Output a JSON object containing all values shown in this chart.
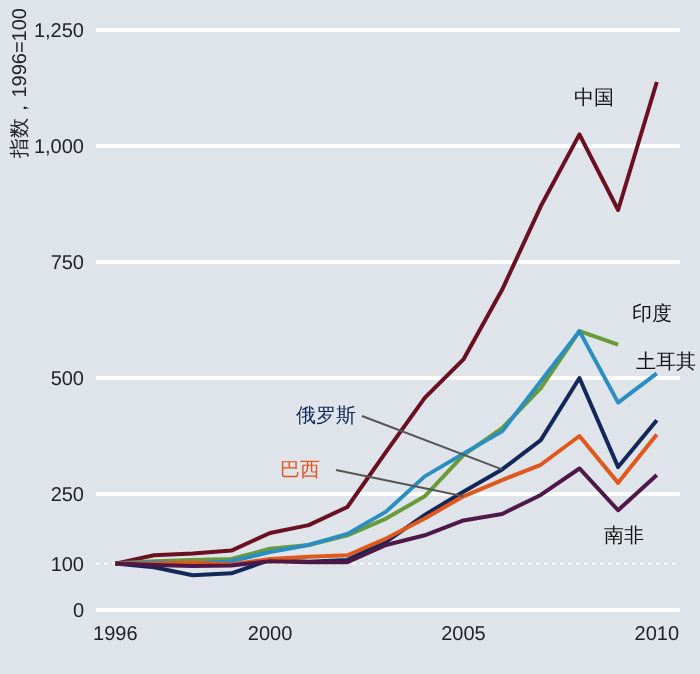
{
  "chart_data": {
    "type": "line",
    "ylabel": "指数，1996=100",
    "x": [
      1996,
      1997,
      1998,
      1999,
      2000,
      2001,
      2002,
      2003,
      2004,
      2005,
      2006,
      2007,
      2008,
      2009,
      2010
    ],
    "xlim": [
      1995.5,
      2010.6
    ],
    "xticks": [
      1996,
      2000,
      2005,
      2010
    ],
    "ylim": [
      0,
      1250
    ],
    "yticks": [
      0,
      100,
      250,
      500,
      750,
      {
        "value": 1000,
        "label": "1,000"
      },
      {
        "value": 1250,
        "label": "1,250"
      }
    ],
    "grid": "y",
    "ref_lines": [
      {
        "axis": "y",
        "value": 100,
        "color": "#ffffff",
        "line_style": "dotted"
      }
    ],
    "legend": false,
    "marker": "none",
    "line_style": "solid",
    "series": [
      {
        "name": "中国",
        "color": "#6b1020",
        "values": [
          100,
          118,
          122,
          128,
          166,
          183,
          222,
          341,
          457,
          540,
          690,
          870,
          1025,
          862,
          1138
        ]
      },
      {
        "name": "印度",
        "color": "#6a9a3a",
        "values": [
          100,
          105,
          108,
          110,
          132,
          140,
          161,
          197,
          245,
          334,
          392,
          478,
          601,
          572,
          null
        ]
      },
      {
        "name": "土耳其",
        "color": "#2a8fc0",
        "values": [
          100,
          103,
          100,
          105,
          125,
          140,
          164,
          212,
          288,
          337,
          385,
          493,
          601,
          447,
          510
        ]
      },
      {
        "name": "俄罗斯",
        "color": "#13285a",
        "values": [
          100,
          92,
          75,
          79,
          108,
          104,
          108,
          147,
          205,
          255,
          303,
          366,
          500,
          308,
          409
        ]
      },
      {
        "name": "巴西",
        "color": "#e0581c",
        "values": [
          100,
          100,
          102,
          98,
          110,
          115,
          118,
          154,
          197,
          245,
          280,
          313,
          375,
          274,
          378
        ]
      },
      {
        "name": "南非",
        "color": "#4e1848",
        "values": [
          100,
          97,
          95,
          96,
          105,
          103,
          103,
          140,
          161,
          193,
          207,
          248,
          305,
          215,
          291
        ]
      }
    ]
  }
}
